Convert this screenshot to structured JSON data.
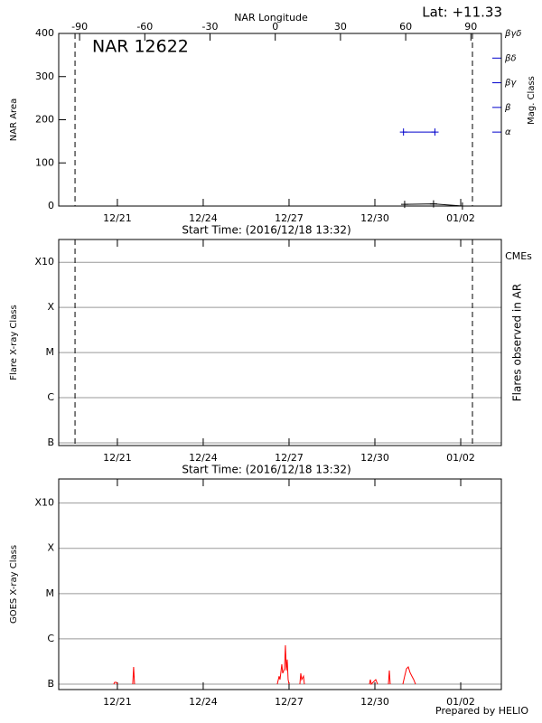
{
  "chart_data": [
    {
      "type": "line",
      "title": "NAR 12622",
      "annotation": "Lat: +11.33",
      "xlabel": "Start Time: (2016/12/18 13:32)",
      "ylabel": "NAR Area",
      "x2label": "NAR Longitude",
      "y2label": "Mag. Class",
      "y2color": "#0000cc",
      "xlim": [
        18.95,
        34.42
      ],
      "xticks": [
        {
          "value": 21,
          "label": "12/21"
        },
        {
          "value": 24,
          "label": "12/24"
        },
        {
          "value": 27,
          "label": "12/27"
        },
        {
          "value": 30,
          "label": "12/30"
        },
        {
          "value": 33,
          "label": "01/02"
        }
      ],
      "x2lim": [
        -99.6,
        104
      ],
      "x2ticks": [
        -90,
        -60,
        -30,
        0,
        30,
        60,
        90
      ],
      "ylim": [
        0,
        400
      ],
      "yticks": [
        0,
        100,
        200,
        300,
        400
      ],
      "y2lim": [
        0,
        7
      ],
      "y2ticks": [
        {
          "value": 3,
          "label": "α"
        },
        {
          "value": 4,
          "label": "β"
        },
        {
          "value": 5,
          "label": "βγ"
        },
        {
          "value": 6,
          "label": "βδ"
        },
        {
          "value": 7,
          "label": "βγδ"
        }
      ],
      "vlines": [
        19.52,
        33.41
      ],
      "grid": false,
      "series": [
        {
          "color": "#000000",
          "x": [
            31.04,
            32.05,
            33.06
          ],
          "values": [
            4,
            5,
            0
          ]
        },
        {
          "color": "#0000cc",
          "axis": "y2",
          "x": [
            31.0,
            32.1
          ],
          "values": [
            3,
            3
          ]
        }
      ]
    },
    {
      "type": "line",
      "xlabel": "Start Time: (2016/12/18 13:32)",
      "ylabel": "Flare X-ray Class",
      "y2label": "Flares observed in AR",
      "annotation": "CMEs",
      "annotation_color": "#ff0000",
      "xlim": [
        18.95,
        34.42
      ],
      "xticks": [
        {
          "value": 21,
          "label": "12/21"
        },
        {
          "value": 24,
          "label": "12/24"
        },
        {
          "value": 27,
          "label": "12/27"
        },
        {
          "value": 30,
          "label": "12/30"
        },
        {
          "value": 33,
          "label": "01/02"
        }
      ],
      "log_y": true,
      "ylim": [
        8.7e-08,
        0.0032
      ],
      "yticks": [
        {
          "value": 1e-07,
          "label": "B"
        },
        {
          "value": 1e-06,
          "label": "C"
        },
        {
          "value": 1e-05,
          "label": "M"
        },
        {
          "value": 0.0001,
          "label": "X"
        },
        {
          "value": 0.001,
          "label": "X10"
        }
      ],
      "vlines": [
        19.52,
        33.41
      ],
      "grid": true,
      "series": []
    },
    {
      "type": "line",
      "ylabel": "GOES X-ray Class",
      "xlim": [
        18.95,
        34.42
      ],
      "xticks": [
        {
          "value": 21,
          "label": "12/21"
        },
        {
          "value": 24,
          "label": "12/24"
        },
        {
          "value": 27,
          "label": "12/27"
        },
        {
          "value": 30,
          "label": "12/30"
        },
        {
          "value": 33,
          "label": "01/02"
        }
      ],
      "log_y": true,
      "ylim": [
        7.6e-08,
        0.0034
      ],
      "yticks": [
        {
          "value": 1e-07,
          "label": "B"
        },
        {
          "value": 1e-06,
          "label": "C"
        },
        {
          "value": 1e-05,
          "label": "M"
        },
        {
          "value": 0.0001,
          "label": "X"
        },
        {
          "value": 0.001,
          "label": "X10"
        }
      ],
      "grid": true,
      "series": [
        {
          "color": "#ff0000",
          "x": [
            20.874,
            20.905,
            20.968,
            21.0,
            null,
            21.537,
            21.568,
            21.6,
            null,
            26.589,
            26.652,
            26.684,
            26.747,
            26.778,
            26.842,
            26.873,
            26.905,
            26.936,
            26.968,
            27.0,
            null,
            27.378,
            27.41,
            27.442,
            27.505,
            27.536,
            null,
            29.81,
            29.842,
            29.874,
            29.968,
            30.031,
            30.094,
            null,
            30.473,
            30.505,
            30.536,
            null,
            30.978,
            31.041,
            31.104,
            31.167,
            31.23,
            31.294,
            31.357,
            31.42
          ],
          "values": [
            1e-07,
            1.1e-07,
            1.1e-07,
            1e-07,
            null,
            1e-07,
            2.4e-07,
            1e-07,
            null,
            1e-07,
            1.5e-07,
            1.26e-07,
            2.75e-07,
            1.74e-07,
            2.19e-07,
            7.2e-07,
            2e-07,
            3.5e-07,
            1.26e-07,
            1e-07,
            null,
            1e-07,
            1.74e-07,
            1.26e-07,
            1.5e-07,
            1e-07,
            null,
            1e-07,
            1.26e-07,
            1e-07,
            1.15e-07,
            1.26e-07,
            1e-07,
            null,
            1e-07,
            2e-07,
            1e-07,
            null,
            1e-07,
            1.5e-07,
            2.19e-07,
            2.4e-07,
            1.8e-07,
            1.5e-07,
            1.26e-07,
            1e-07
          ]
        }
      ]
    }
  ],
  "footer": "Prepared by HELIO"
}
